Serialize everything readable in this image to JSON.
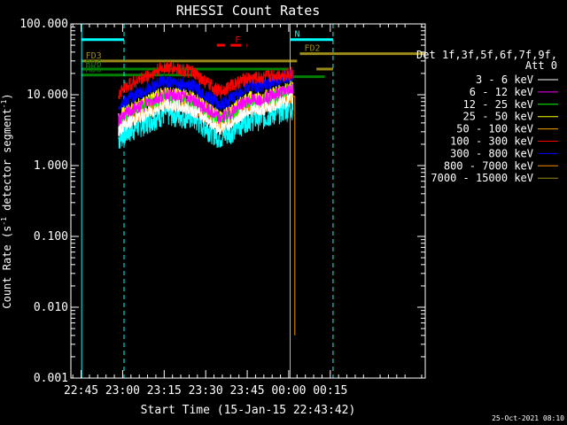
{
  "chart_data": {
    "type": "line",
    "title": "RHESSI Count Rates",
    "xlabel": "Start Time (15-Jan-15 22:43:42)",
    "ylabel_main": "Count Rate (s",
    "ylabel_sup1": "-1",
    "ylabel_mid": " detector segment",
    "ylabel_sup2": "-1",
    "ylabel_end": ")",
    "y_scale": "log",
    "ylim": [
      0.001,
      100
    ],
    "xlim_minutes": [
      -3.7,
      124.3
    ],
    "x_ticks": [
      {
        "label": "22:45",
        "minute": 0
      },
      {
        "label": "23:00",
        "minute": 15
      },
      {
        "label": "23:15",
        "minute": 30
      },
      {
        "label": "23:30",
        "minute": 45
      },
      {
        "label": "23:45",
        "minute": 60
      },
      {
        "label": "00:00",
        "minute": 75
      },
      {
        "label": "00:15",
        "minute": 90
      }
    ],
    "y_ticks": [
      {
        "label": "100.000",
        "value": 100
      },
      {
        "label": "10.000",
        "value": 10
      },
      {
        "label": "1.000",
        "value": 1
      },
      {
        "label": "0.100",
        "value": 0.1
      },
      {
        "label": "0.010",
        "value": 0.01
      },
      {
        "label": "0.001",
        "value": 0.001
      }
    ],
    "legend_header": [
      "Det 1f,3f,5f,6f,7f,9f,",
      "Att 0"
    ],
    "legend_position": "right",
    "series": [
      {
        "name": "3 - 6 keV",
        "color": "#ffffff",
        "t": [
          13.5,
          15,
          20,
          25,
          30,
          35,
          40,
          45,
          50,
          52,
          55,
          60,
          65,
          70,
          75,
          76.5
        ],
        "v": [
          3.0,
          3.6,
          4.6,
          5.7,
          7.1,
          6.8,
          6.2,
          4.6,
          3.3,
          3.6,
          4.2,
          6.0,
          6.1,
          7.2,
          8.4,
          8.8
        ]
      },
      {
        "name": "6 - 12 keV",
        "color": "#ff00ff",
        "t": [
          13.5,
          15,
          20,
          25,
          30,
          35,
          40,
          45,
          50,
          52,
          55,
          60,
          65,
          70,
          75,
          76.5
        ],
        "v": [
          4.3,
          5.0,
          6.4,
          8.0,
          10.0,
          9.5,
          8.7,
          6.4,
          4.6,
          5.0,
          5.9,
          8.4,
          8.5,
          10.1,
          11.8,
          12.3
        ]
      },
      {
        "name": "12 - 25 keV",
        "color": "#00ff00",
        "t": [
          13.5,
          15,
          20,
          25,
          30,
          35,
          40,
          45,
          50,
          52,
          55,
          60,
          65,
          70,
          75,
          76.5
        ],
        "v": [
          4.0,
          4.7,
          6.0,
          7.5,
          9.3,
          8.8,
          8.1,
          6.0,
          4.3,
          4.7,
          5.5,
          7.8,
          7.9,
          9.4,
          11.0,
          11.5
        ]
      },
      {
        "name": "25 - 50 keV",
        "color": "#ffff00",
        "t": [
          13.5,
          15,
          20,
          25,
          30,
          35,
          40,
          45,
          50,
          52,
          55,
          60,
          65,
          70,
          75,
          76.5
        ],
        "v": [
          4.6,
          5.4,
          6.9,
          8.6,
          10.7,
          10.2,
          9.3,
          6.9,
          5.0,
          5.4,
          6.3,
          9.0,
          9.1,
          10.8,
          12.6,
          13.2
        ]
      },
      {
        "name": "50 - 100 keV",
        "color": "#ffa500",
        "t": [
          13.5,
          15,
          20,
          25,
          30,
          35,
          40,
          45,
          50,
          52,
          55,
          60,
          65,
          70,
          75,
          76.5
        ],
        "v": [
          3.4,
          4.0,
          5.1,
          6.3,
          7.9,
          7.5,
          6.9,
          5.1,
          3.7,
          4.0,
          4.7,
          6.7,
          6.7,
          8.0,
          9.3,
          9.8
        ]
      },
      {
        "name": "100 - 300 keV",
        "color": "#ff0000",
        "t": [
          13.5,
          15,
          20,
          25,
          30,
          35,
          40,
          45,
          50,
          52,
          55,
          60,
          65,
          70,
          75,
          76.5
        ],
        "v": [
          10.5,
          12.0,
          15.6,
          19.2,
          24.5,
          23.0,
          20.9,
          15.0,
          11.0,
          12.0,
          14.0,
          17.0,
          17.2,
          18.9,
          19.6,
          20.0
        ]
      },
      {
        "name": "300 - 800 keV",
        "color": "#0000ff",
        "t": [
          13.5,
          15,
          20,
          25,
          30,
          35,
          40,
          45,
          50,
          52,
          55,
          60,
          65,
          70,
          75,
          76.5
        ],
        "v": [
          6.6,
          7.8,
          10.0,
          12.4,
          15.5,
          14.7,
          13.4,
          9.9,
          7.2,
          7.8,
          9.1,
          13.0,
          13.2,
          15.6,
          18.2,
          19.0
        ]
      },
      {
        "name": "800 - 7000 keV",
        "color": "#ff8c00",
        "t": [
          13.5,
          15,
          20,
          25,
          30,
          35,
          40,
          45,
          50,
          52,
          55,
          60,
          65,
          70,
          75,
          76.5,
          77.2
        ],
        "v": [
          3.3,
          4.0,
          5.0,
          6.2,
          7.7,
          7.3,
          6.7,
          5.0,
          3.6,
          4.0,
          4.6,
          6.5,
          6.6,
          7.8,
          9.1,
          9.5,
          0.004
        ]
      },
      {
        "name": "7000 - 15000 keV",
        "color": "#9b8b1a",
        "t": [],
        "v": []
      }
    ],
    "bottom_trace": {
      "color": "#00ffff",
      "t": [
        13.5,
        15,
        20,
        25,
        30,
        35,
        40,
        45,
        50,
        52,
        55,
        60,
        65,
        70,
        75,
        76.5
      ],
      "v": [
        2.4,
        2.8,
        3.6,
        4.5,
        5.6,
        5.3,
        4.9,
        3.6,
        2.6,
        2.8,
        3.3,
        4.7,
        4.8,
        5.7,
        6.6,
        6.9
      ]
    },
    "flag_bars": [
      {
        "label": "N",
        "color": "#00ffff",
        "segments": [
          [
            0,
            15.5
          ],
          [
            75.5,
            91
          ]
        ],
        "level": 60,
        "style": "solid"
      },
      {
        "label": "F",
        "color": "#ff0000",
        "segments": [
          [
            49,
            52
          ],
          [
            54,
            60
          ]
        ],
        "level": 50,
        "style": "dashed"
      },
      {
        "label": "FD2",
        "color": "#9b8b1a",
        "segments": [
          [
            79,
            124
          ]
        ],
        "level": 38,
        "style": "solid"
      },
      {
        "label": "FD3",
        "color": "#9b8b1a",
        "segments": [
          [
            0,
            78
          ]
        ],
        "level": 30,
        "style": "solid"
      },
      {
        "label": "",
        "color": "#9b8b1a",
        "segments": [
          [
            85,
            91
          ]
        ],
        "level": 23,
        "style": "solid"
      },
      {
        "label": "RD6",
        "color": "#008000",
        "segments": [
          [
            0,
            75
          ]
        ],
        "level": 23,
        "style": "solid"
      },
      {
        "label": "",
        "color": "#008000",
        "segments": [
          [
            74,
            88
          ]
        ],
        "level": 18,
        "style": "solid"
      },
      {
        "label": "RD6",
        "color": "#008000",
        "segments": [
          [
            0,
            43
          ]
        ],
        "level": 19,
        "style": "solid"
      }
    ],
    "vlines": [
      {
        "minute": 0.2,
        "color": "#00ffff",
        "style": "solid"
      },
      {
        "minute": 15.5,
        "color": "#00ffff",
        "style": "dashed"
      },
      {
        "minute": 75.5,
        "color": "#00ffff",
        "style": "solid"
      },
      {
        "minute": 91,
        "color": "#00ffff",
        "style": "dashed"
      }
    ],
    "footer_date": "25-Oct-2021 08:10"
  }
}
